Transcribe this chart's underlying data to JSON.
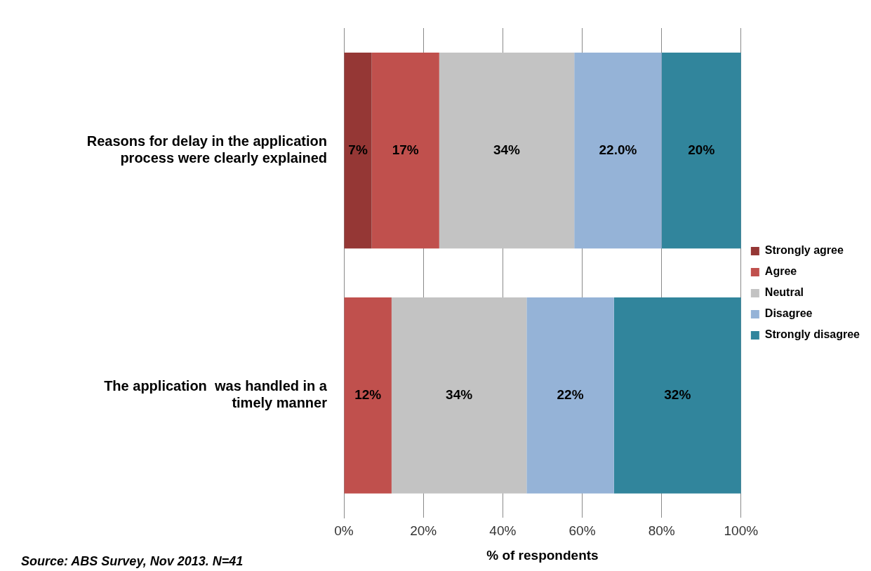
{
  "chart_data": {
    "type": "bar",
    "orientation": "horizontal",
    "stacked": true,
    "categories": [
      "Reasons for delay in the application process were clearly explained",
      "The application  was handled in a timely manner"
    ],
    "series": [
      {
        "name": "Strongly agree",
        "color": "#953735",
        "values": [
          7,
          null
        ],
        "value_labels": [
          "7%",
          null
        ]
      },
      {
        "name": "Agree",
        "color": "#c0504d",
        "values": [
          17,
          12
        ],
        "value_labels": [
          "17%",
          "12%"
        ]
      },
      {
        "name": "Neutral",
        "color": "#c3c3c3",
        "values": [
          34,
          34
        ],
        "value_labels": [
          "34%",
          "34%"
        ]
      },
      {
        "name": "Disagree",
        "color": "#95b3d7",
        "values": [
          22,
          22
        ],
        "value_labels": [
          "22.0%",
          "22%"
        ]
      },
      {
        "name": "Strongly disagree",
        "color": "#31859c",
        "values": [
          20,
          32
        ],
        "value_labels": [
          "20%",
          "32%"
        ]
      }
    ],
    "xlim": [
      0,
      100
    ],
    "xticks": [
      {
        "value": 0,
        "label": "0%"
      },
      {
        "value": 20,
        "label": "20%"
      },
      {
        "value": 40,
        "label": "40%"
      },
      {
        "value": 60,
        "label": "60%"
      },
      {
        "value": 80,
        "label": "80%"
      },
      {
        "value": 100,
        "label": "100%"
      }
    ],
    "xlabel": "% of respondents",
    "grid": "x",
    "legend": "right",
    "annotations": [
      "Source: ABS Survey, Nov 2013. N=41"
    ]
  }
}
